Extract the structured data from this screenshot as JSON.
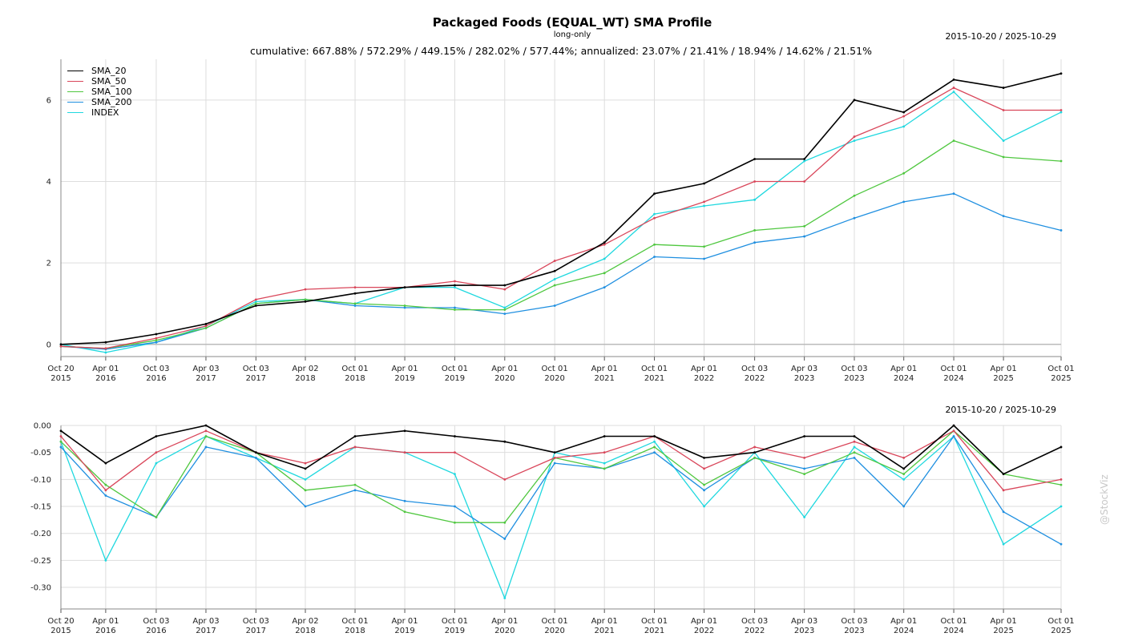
{
  "title": "Packaged Foods (EQUAL_WT) SMA Profile",
  "subtitle": "long-only",
  "stats_line": "cumulative: 667.88% / 572.29% / 449.15% / 282.02% / 577.44%; annualized: 23.07% / 21.41% / 18.94% / 14.62% / 21.51%",
  "date_range_top": "2015-10-20 / 2025-10-29",
  "date_range_bottom": "2015-10-20 / 2025-10-29",
  "watermark": "@StockViz",
  "colors": {
    "SMA_20": "#000000",
    "SMA_50": "#d9465a",
    "SMA_100": "#4fc73f",
    "SMA_200": "#1f8fe0",
    "INDEX": "#1fd8df",
    "grid": "#dddddd",
    "axis": "#888888"
  },
  "chart_data": [
    {
      "type": "line",
      "title": "Packaged Foods (EQUAL_WT) SMA Profile",
      "xlabel": "",
      "ylabel": "",
      "ylim": [
        -0.3,
        7.0
      ],
      "yticks": [
        0,
        2,
        4,
        6
      ],
      "grid": true,
      "legend_position": "top-left",
      "x_tick_labels": [
        [
          "Oct 20",
          "2015"
        ],
        [
          "Apr 01",
          "2016"
        ],
        [
          "Oct 03",
          "2016"
        ],
        [
          "Apr 03",
          "2017"
        ],
        [
          "Oct 03",
          "2017"
        ],
        [
          "Apr 02",
          "2018"
        ],
        [
          "Oct 01",
          "2018"
        ],
        [
          "Apr 01",
          "2019"
        ],
        [
          "Oct 01",
          "2019"
        ],
        [
          "Apr 01",
          "2020"
        ],
        [
          "Oct 01",
          "2020"
        ],
        [
          "Apr 01",
          "2021"
        ],
        [
          "Oct 01",
          "2021"
        ],
        [
          "Apr 01",
          "2022"
        ],
        [
          "Oct 03",
          "2022"
        ],
        [
          "Apr 03",
          "2023"
        ],
        [
          "Oct 03",
          "2023"
        ],
        [
          "Apr 01",
          "2024"
        ],
        [
          "Oct 01",
          "2024"
        ],
        [
          "Apr 01",
          "2025"
        ],
        [
          "Oct 01",
          "2025"
        ]
      ],
      "x": [
        "2015-10-20",
        "2016-04-01",
        "2016-10-03",
        "2017-04-03",
        "2017-10-03",
        "2018-04-02",
        "2018-10-01",
        "2019-04-01",
        "2019-10-01",
        "2020-04-01",
        "2020-10-01",
        "2021-04-01",
        "2021-10-01",
        "2022-04-01",
        "2022-10-03",
        "2023-04-03",
        "2023-10-03",
        "2024-04-01",
        "2024-10-01",
        "2025-04-01",
        "2025-10-29"
      ],
      "series": [
        {
          "name": "SMA_20",
          "values": [
            0.0,
            0.05,
            0.25,
            0.5,
            0.95,
            1.05,
            1.25,
            1.4,
            1.45,
            1.45,
            1.8,
            2.5,
            3.7,
            3.95,
            4.55,
            4.55,
            6.0,
            5.7,
            6.5,
            6.3,
            6.65
          ]
        },
        {
          "name": "SMA_50",
          "values": [
            -0.05,
            -0.1,
            0.15,
            0.45,
            1.1,
            1.35,
            1.4,
            1.4,
            1.55,
            1.35,
            2.05,
            2.45,
            3.1,
            3.5,
            4.0,
            4.0,
            5.1,
            5.6,
            6.3,
            5.75,
            5.75
          ]
        },
        {
          "name": "SMA_100",
          "values": [
            -0.05,
            -0.1,
            0.1,
            0.4,
            1.0,
            1.1,
            1.0,
            0.95,
            0.85,
            0.85,
            1.45,
            1.75,
            2.45,
            2.4,
            2.8,
            2.9,
            3.65,
            4.2,
            5.0,
            4.6,
            4.5
          ]
        },
        {
          "name": "SMA_200",
          "values": [
            -0.05,
            -0.12,
            0.05,
            0.4,
            1.0,
            1.1,
            0.95,
            0.9,
            0.9,
            0.75,
            0.95,
            1.4,
            2.15,
            2.1,
            2.5,
            2.65,
            3.1,
            3.5,
            3.7,
            3.15,
            2.8
          ]
        },
        {
          "name": "INDEX",
          "values": [
            0.0,
            -0.2,
            0.05,
            0.45,
            1.05,
            1.1,
            1.0,
            1.4,
            1.4,
            0.9,
            1.6,
            2.1,
            3.2,
            3.4,
            3.55,
            4.5,
            5.0,
            5.35,
            6.2,
            5.0,
            5.7
          ]
        }
      ]
    },
    {
      "type": "line",
      "title": "",
      "xlabel": "",
      "ylabel": "",
      "ylim": [
        -0.34,
        0.0
      ],
      "yticks": [
        0.0,
        -0.05,
        -0.1,
        -0.15,
        -0.2,
        -0.25,
        -0.3
      ],
      "ytick_labels": [
        "0.00",
        "-0.05",
        "-0.10",
        "-0.15",
        "-0.20",
        "-0.25",
        "-0.30"
      ],
      "grid": true,
      "x_tick_labels": [
        [
          "Oct 20",
          "2015"
        ],
        [
          "Apr 01",
          "2016"
        ],
        [
          "Oct 03",
          "2016"
        ],
        [
          "Apr 03",
          "2017"
        ],
        [
          "Oct 03",
          "2017"
        ],
        [
          "Apr 02",
          "2018"
        ],
        [
          "Oct 01",
          "2018"
        ],
        [
          "Apr 01",
          "2019"
        ],
        [
          "Oct 01",
          "2019"
        ],
        [
          "Apr 01",
          "2020"
        ],
        [
          "Oct 01",
          "2020"
        ],
        [
          "Apr 01",
          "2021"
        ],
        [
          "Oct 01",
          "2021"
        ],
        [
          "Apr 01",
          "2022"
        ],
        [
          "Oct 03",
          "2022"
        ],
        [
          "Apr 03",
          "2023"
        ],
        [
          "Oct 03",
          "2023"
        ],
        [
          "Apr 01",
          "2024"
        ],
        [
          "Oct 01",
          "2024"
        ],
        [
          "Apr 01",
          "2025"
        ],
        [
          "Oct 01",
          "2025"
        ]
      ],
      "x": [
        "2015-10-20",
        "2016-04-01",
        "2016-10-03",
        "2017-04-03",
        "2017-10-03",
        "2018-04-02",
        "2018-10-01",
        "2019-04-01",
        "2019-10-01",
        "2020-04-01",
        "2020-10-01",
        "2021-04-01",
        "2021-10-01",
        "2022-04-01",
        "2022-10-03",
        "2023-04-03",
        "2023-10-03",
        "2024-04-01",
        "2024-10-01",
        "2025-04-01",
        "2025-10-29"
      ],
      "series": [
        {
          "name": "SMA_20",
          "values": [
            -0.01,
            -0.07,
            -0.02,
            0.0,
            -0.05,
            -0.08,
            -0.02,
            -0.01,
            -0.02,
            -0.03,
            -0.05,
            -0.02,
            -0.02,
            -0.06,
            -0.05,
            -0.02,
            -0.02,
            -0.08,
            0.0,
            -0.09,
            -0.04
          ]
        },
        {
          "name": "SMA_50",
          "values": [
            -0.02,
            -0.12,
            -0.05,
            -0.01,
            -0.05,
            -0.07,
            -0.04,
            -0.05,
            -0.05,
            -0.1,
            -0.06,
            -0.05,
            -0.02,
            -0.08,
            -0.04,
            -0.06,
            -0.03,
            -0.06,
            -0.01,
            -0.12,
            -0.1
          ]
        },
        {
          "name": "SMA_100",
          "values": [
            -0.03,
            -0.11,
            -0.17,
            -0.02,
            -0.05,
            -0.12,
            -0.11,
            -0.16,
            -0.18,
            -0.18,
            -0.06,
            -0.08,
            -0.04,
            -0.11,
            -0.06,
            -0.09,
            -0.05,
            -0.09,
            -0.01,
            -0.09,
            -0.11
          ]
        },
        {
          "name": "SMA_200",
          "values": [
            -0.04,
            -0.13,
            -0.17,
            -0.04,
            -0.06,
            -0.15,
            -0.12,
            -0.14,
            -0.15,
            -0.21,
            -0.07,
            -0.08,
            -0.05,
            -0.12,
            -0.06,
            -0.08,
            -0.06,
            -0.15,
            -0.02,
            -0.16,
            -0.22
          ]
        },
        {
          "name": "INDEX",
          "values": [
            -0.03,
            -0.25,
            -0.07,
            -0.02,
            -0.06,
            -0.1,
            -0.04,
            -0.05,
            -0.09,
            -0.32,
            -0.05,
            -0.07,
            -0.03,
            -0.15,
            -0.05,
            -0.17,
            -0.04,
            -0.1,
            -0.02,
            -0.22,
            -0.15
          ]
        }
      ]
    }
  ]
}
